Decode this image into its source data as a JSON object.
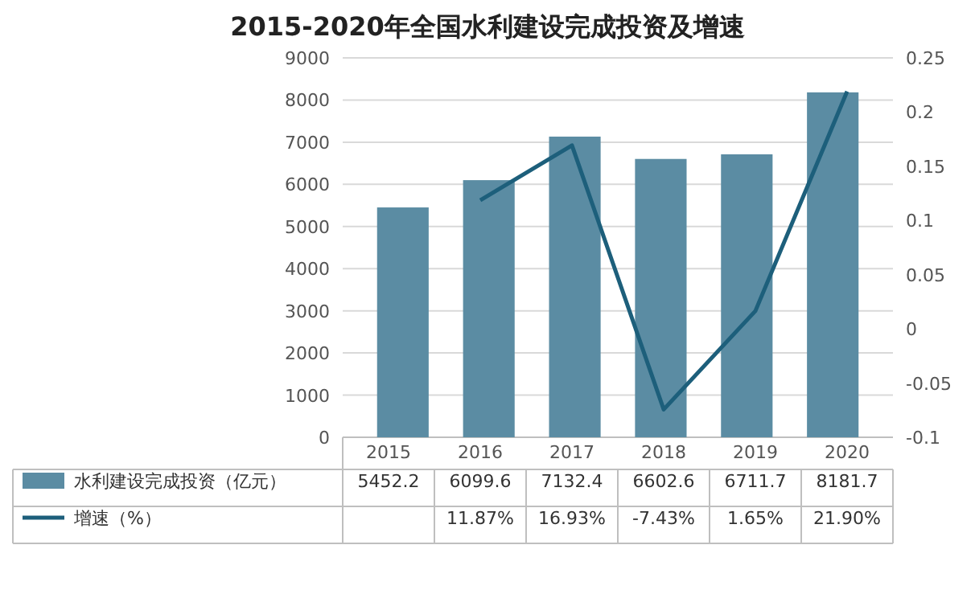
{
  "chart_data": {
    "type": "bar",
    "title": "2015-2020年全国水利建设完成投资及增速",
    "categories": [
      "2015",
      "2016",
      "2017",
      "2018",
      "2019",
      "2020"
    ],
    "series": [
      {
        "name": "水利建设完成投资（亿元）",
        "color": "#5b8ca3",
        "values": [
          5452.2,
          6099.6,
          7132.4,
          6602.6,
          6711.7,
          8181.7
        ],
        "value_labels": [
          "5452.2",
          "6099.6",
          "7132.4",
          "6602.6",
          "6711.7",
          "8181.7"
        ]
      },
      {
        "name": "增速（%）",
        "type": "line",
        "axis": "y2",
        "color": "#1d5f7b",
        "values": [
          null,
          0.1187,
          0.1693,
          -0.0743,
          0.0165,
          0.219
        ],
        "value_labels": [
          null,
          "11.87%",
          "16.93%",
          "-7.43%",
          "1.65%",
          "21.90%"
        ]
      }
    ],
    "ylim": [
      0,
      9000
    ],
    "yticks": [
      0,
      1000,
      2000,
      3000,
      4000,
      5000,
      6000,
      7000,
      8000,
      9000
    ],
    "y2lim": [
      -0.1,
      0.25
    ],
    "y2ticks": [
      -0.1,
      -0.05,
      0,
      0.05,
      0.1,
      0.15,
      0.2,
      0.25
    ],
    "grid": "y",
    "legend": "bottom",
    "marker": "none",
    "line_style": "solid"
  }
}
